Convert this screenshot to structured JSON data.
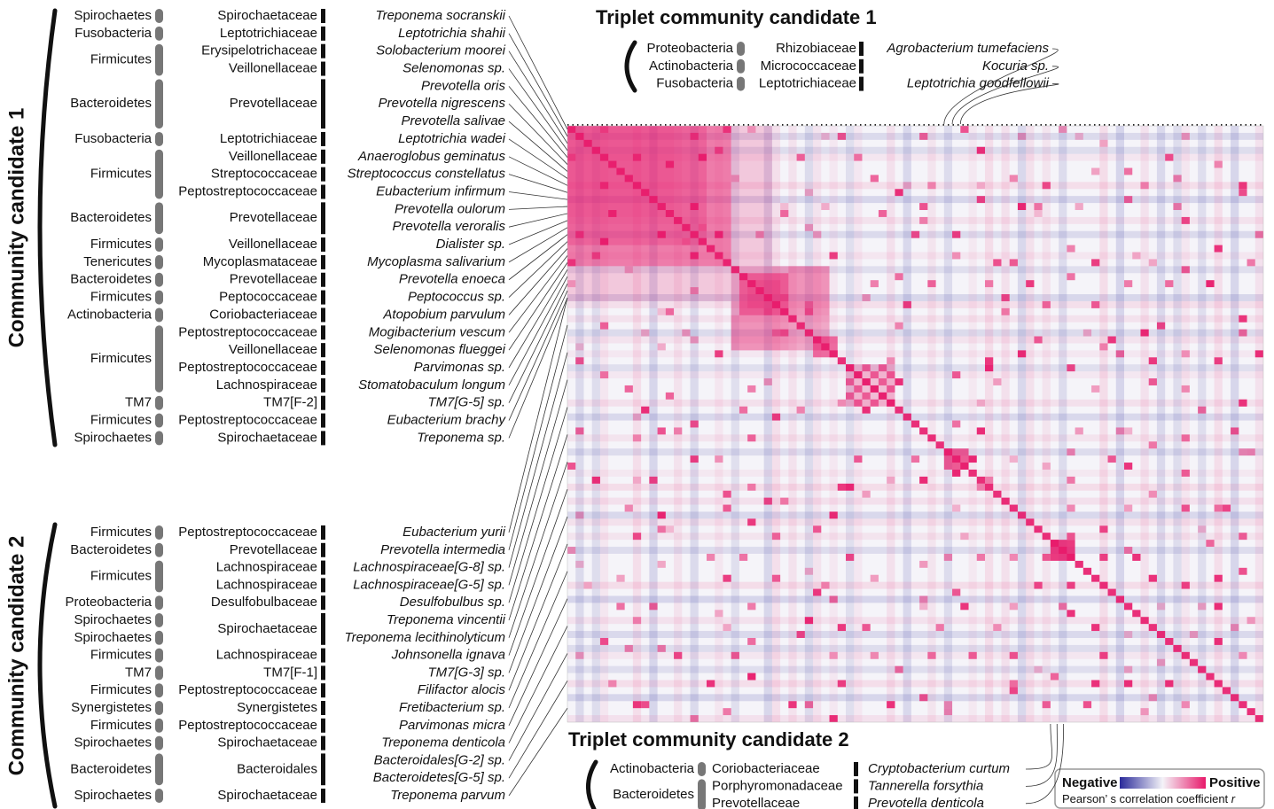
{
  "community_1": {
    "title": "Community candidate 1",
    "rows": [
      {
        "phylum": "Spirochaetes",
        "family": "Spirochaetaceae",
        "species": "Treponema socranskii"
      },
      {
        "phylum": "Fusobacteria",
        "family": "Leptotrichiaceae",
        "species": "Leptotrichia shahii"
      },
      {
        "phylum": "Firmicutes",
        "family": "Erysipelotrichaceae",
        "species": "Solobacterium moorei"
      },
      {
        "phylum": null,
        "family": "Veillonellaceae",
        "species": "Selenomonas sp."
      },
      {
        "phylum": "Bacteroidetes",
        "family": "Prevotellaceae",
        "species": "Prevotella oris"
      },
      {
        "phylum": null,
        "family": null,
        "species": "Prevotella nigrescens"
      },
      {
        "phylum": null,
        "family": null,
        "species": "Prevotella salivae"
      },
      {
        "phylum": "Fusobacteria",
        "family": "Leptotrichiaceae",
        "species": "Leptotrichia wadei"
      },
      {
        "phylum": "Firmicutes",
        "family": "Veillonellaceae",
        "species": "Anaeroglobus geminatus"
      },
      {
        "phylum": null,
        "family": "Streptococcaceae",
        "species": "Streptococcus constellatus"
      },
      {
        "phylum": null,
        "family": "Peptostreptococcaceae",
        "species": "Eubacterium infirmum"
      },
      {
        "phylum": "Bacteroidetes",
        "family": "Prevotellaceae",
        "species": "Prevotella oulorum"
      },
      {
        "phylum": null,
        "family": null,
        "species": "Prevotella veroralis"
      },
      {
        "phylum": "Firmicutes",
        "family": "Veillonellaceae",
        "species": "Dialister sp."
      },
      {
        "phylum": "Tenericutes",
        "family": "Mycoplasmataceae",
        "species": "Mycoplasma salivarium"
      },
      {
        "phylum": "Bacteroidetes",
        "family": "Prevotellaceae",
        "species": "Prevotella enoeca"
      },
      {
        "phylum": "Firmicutes",
        "family": "Peptococcaceae",
        "species": "Peptococcus sp."
      },
      {
        "phylum": "Actinobacteria",
        "family": "Coriobacteriaceae",
        "species": "Atopobium parvulum"
      },
      {
        "phylum": "Firmicutes",
        "family": "Peptostreptococcaceae",
        "species": "Mogibacterium vescum"
      },
      {
        "phylum": null,
        "family": "Veillonellaceae",
        "species": "Selenomonas flueggei"
      },
      {
        "phylum": null,
        "family": "Peptostreptococcaceae",
        "species": "Parvimonas sp."
      },
      {
        "phylum": null,
        "family": "Lachnospiraceae",
        "species": "Stomatobaculum longum"
      },
      {
        "phylum": "TM7",
        "family": "TM7[F-2]",
        "species": "TM7[G-5] sp."
      },
      {
        "phylum": "Firmicutes",
        "family": "Peptostreptococcaceae",
        "species": "Eubacterium brachy"
      },
      {
        "phylum": "Spirochaetes",
        "family": "Spirochaetaceae",
        "species": "Treponema sp."
      }
    ]
  },
  "community_2": {
    "title": "Community candidate 2",
    "rows": [
      {
        "phylum": "Firmicutes",
        "family": "Peptostreptococcaceae",
        "species": "Eubacterium yurii"
      },
      {
        "phylum": "Bacteroidetes",
        "family": "Prevotellaceae",
        "species": "Prevotella intermedia"
      },
      {
        "phylum": "Firmicutes",
        "family": "Lachnospiraceae",
        "species": "Lachnospiraceae[G-8] sp."
      },
      {
        "phylum": null,
        "family": "Lachnospiraceae",
        "species": "Lachnospiraceae[G-5] sp."
      },
      {
        "phylum": "Proteobacteria",
        "family": "Desulfobulbaceae",
        "species": "Desulfobulbus sp."
      },
      {
        "phylum": "Spirochaetes",
        "family": "Spirochaetaceae",
        "species": "Treponema vincentii"
      },
      {
        "phylum": "Spirochaetes",
        "family": null,
        "species": "Treponema lecithinolyticum"
      },
      {
        "phylum": "Firmicutes",
        "family": "Lachnospiraceae",
        "species": "Johnsonella ignava"
      },
      {
        "phylum": "TM7",
        "family": "TM7[F-1]",
        "species": "TM7[G-3] sp."
      },
      {
        "phylum": "Firmicutes",
        "family": "Peptostreptococcaceae",
        "species": "Filifactor alocis"
      },
      {
        "phylum": "Synergistetes",
        "family": "Synergistetes",
        "species": "Fretibacterium sp."
      },
      {
        "phylum": "Firmicutes",
        "family": "Peptostreptococcaceae",
        "species": "Parvimonas micra"
      },
      {
        "phylum": "Spirochaetes",
        "family": "Spirochaetaceae",
        "species": "Treponema denticola"
      },
      {
        "phylum": "Bacteroidetes",
        "family": "Bacteroidales",
        "species": "Bacteroidales[G-2] sp."
      },
      {
        "phylum": null,
        "family": null,
        "species": "Bacteroidetes[G-5] sp."
      },
      {
        "phylum": "Spirochaetes",
        "family": "Spirochaetaceae",
        "species": "Treponema parvum"
      }
    ]
  },
  "triplet_1": {
    "title": "Triplet community candidate 1",
    "rows": [
      {
        "phylum": "Proteobacteria",
        "family": "Rhizobiaceae",
        "species": "Agrobacterium tumefaciens"
      },
      {
        "phylum": "Actinobacteria",
        "family": "Micrococcaceae",
        "species": "Kocuria sp."
      },
      {
        "phylum": "Fusobacteria",
        "family": "Leptotrichiaceae",
        "species": "Leptotrichia goodfellowii"
      }
    ]
  },
  "triplet_2": {
    "title": "Triplet community candidate 2",
    "rows": [
      {
        "phylum": "Actinobacteria",
        "family": "Coriobacteriaceae",
        "species": "Cryptobacterium curtum"
      },
      {
        "phylum": "Bacteroidetes",
        "family": "Porphyromonadaceae",
        "species": "Tannerella forsythia"
      },
      {
        "phylum": null,
        "family": "Prevotellaceae",
        "species": "Prevotella denticola"
      }
    ]
  },
  "legend": {
    "negative": "Negative",
    "positive": "Positive",
    "caption": "Pearson’ s correlation coefficient",
    "symbol": "r"
  }
}
